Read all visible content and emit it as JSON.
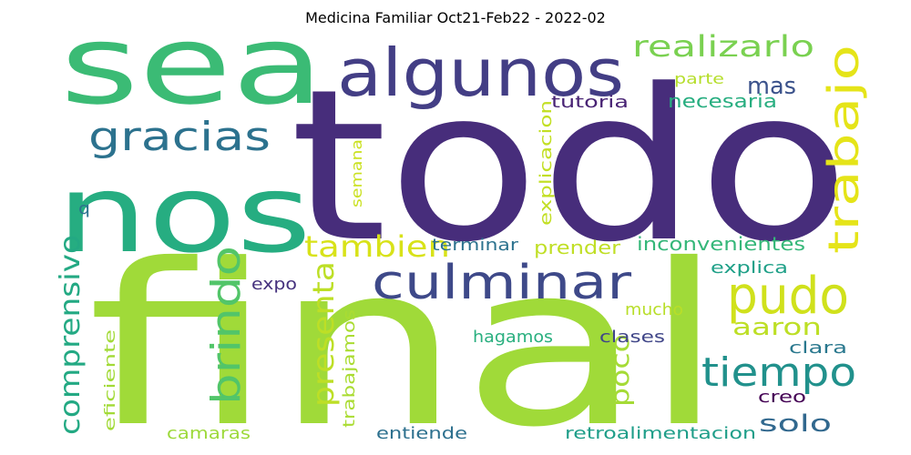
{
  "chart_data": {
    "type": "wordcloud",
    "title": "Medicina Familiar Oct21-Feb22 - 2022-02",
    "colormap": "viridis",
    "background": "#ffffff",
    "words": [
      {
        "text": "todo",
        "weight": 1.0,
        "color": "#472d7b",
        "vertical": false
      },
      {
        "text": "final",
        "weight": 0.95,
        "color": "#a0da39",
        "vertical": false
      },
      {
        "text": "sea",
        "weight": 0.7,
        "color": "#3bbb75",
        "vertical": false
      },
      {
        "text": "nos",
        "weight": 0.68,
        "color": "#26ad81",
        "vertical": false
      },
      {
        "text": "algunos",
        "weight": 0.38,
        "color": "#433e85",
        "vertical": false
      },
      {
        "text": "culminar",
        "weight": 0.28,
        "color": "#3e4989",
        "vertical": false
      },
      {
        "text": "pudo",
        "weight": 0.26,
        "color": "#d0e11c",
        "vertical": false
      },
      {
        "text": "trabajo",
        "weight": 0.25,
        "color": "#e5e419",
        "vertical": true
      },
      {
        "text": "gracias",
        "weight": 0.22,
        "color": "#2c728e",
        "vertical": false
      },
      {
        "text": "brindo",
        "weight": 0.21,
        "color": "#52c569",
        "vertical": true
      },
      {
        "text": "tiempo",
        "weight": 0.2,
        "color": "#21918c",
        "vertical": false
      },
      {
        "text": "realizarlo",
        "weight": 0.15,
        "color": "#7ad151",
        "vertical": false
      },
      {
        "text": "presenta",
        "weight": 0.15,
        "color": "#bddf26",
        "vertical": true
      },
      {
        "text": "tambien",
        "weight": 0.14,
        "color": "#d8e219",
        "vertical": false
      },
      {
        "text": "comprensivo",
        "weight": 0.14,
        "color": "#23a983",
        "vertical": true
      },
      {
        "text": "mas",
        "weight": 0.12,
        "color": "#3b528b",
        "vertical": false
      },
      {
        "text": "aaron",
        "weight": 0.12,
        "color": "#bddf26",
        "vertical": false
      },
      {
        "text": "solo",
        "weight": 0.12,
        "color": "#31688e",
        "vertical": false
      },
      {
        "text": "poco",
        "weight": 0.11,
        "color": "#a5db36",
        "vertical": true
      },
      {
        "text": "necesaria",
        "weight": 0.08,
        "color": "#28ae80",
        "vertical": false
      },
      {
        "text": "tutoria",
        "weight": 0.08,
        "color": "#482374",
        "vertical": false
      },
      {
        "text": "parte",
        "weight": 0.07,
        "color": "#b5de2b",
        "vertical": false
      },
      {
        "text": "explicacion",
        "weight": 0.08,
        "color": "#c2df23",
        "vertical": true
      },
      {
        "text": "semana",
        "weight": 0.07,
        "color": "#cae11f",
        "vertical": true
      },
      {
        "text": "terminar",
        "weight": 0.07,
        "color": "#2c728e",
        "vertical": false
      },
      {
        "text": "prender",
        "weight": 0.08,
        "color": "#c0df25",
        "vertical": false
      },
      {
        "text": "inconvenientes",
        "weight": 0.08,
        "color": "#35b779",
        "vertical": false
      },
      {
        "text": "explica",
        "weight": 0.07,
        "color": "#1fa088",
        "vertical": false
      },
      {
        "text": "expo",
        "weight": 0.07,
        "color": "#46327e",
        "vertical": false
      },
      {
        "text": "mucho",
        "weight": 0.07,
        "color": "#b8de29",
        "vertical": false
      },
      {
        "text": "trabajamos",
        "weight": 0.07,
        "color": "#aadc32",
        "vertical": true
      },
      {
        "text": "hagamos",
        "weight": 0.07,
        "color": "#29af7f",
        "vertical": false
      },
      {
        "text": "clases",
        "weight": 0.07,
        "color": "#404688",
        "vertical": false
      },
      {
        "text": "clara",
        "weight": 0.07,
        "color": "#2a788e",
        "vertical": false
      },
      {
        "text": "creo",
        "weight": 0.07,
        "color": "#440154",
        "vertical": false
      },
      {
        "text": "eficiente",
        "weight": 0.06,
        "color": "#a2da37",
        "vertical": true
      },
      {
        "text": "camaras",
        "weight": 0.07,
        "color": "#9dd93b",
        "vertical": false
      },
      {
        "text": "entiende",
        "weight": 0.07,
        "color": "#2d708e",
        "vertical": false
      },
      {
        "text": "retroalimentacion",
        "weight": 0.07,
        "color": "#1f9e89",
        "vertical": false
      },
      {
        "text": "q",
        "weight": 0.06,
        "color": "#2c728e",
        "vertical": false
      }
    ]
  }
}
